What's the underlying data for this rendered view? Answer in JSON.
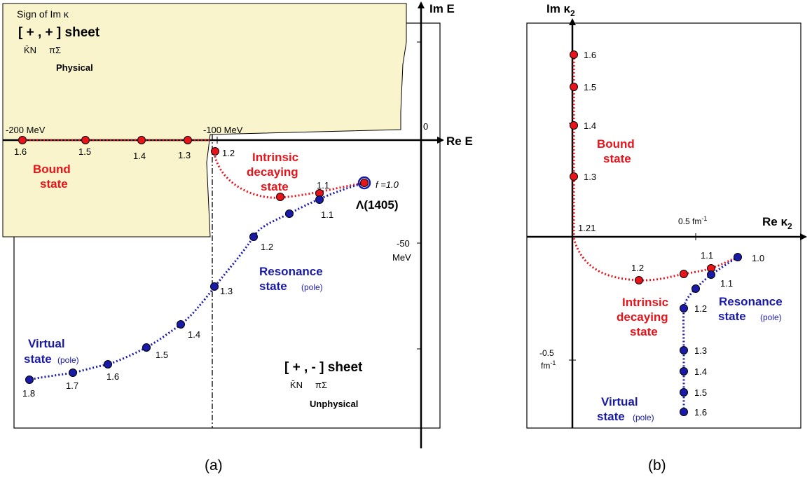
{
  "panel_a": {
    "caption": "(a)",
    "y_axis_label": "Im E",
    "x_axis_label": "Re E",
    "tick_minus200": "-200 MeV",
    "tick_minus100": "-100 MeV",
    "tick_zero": "0",
    "tick_minus50_value": "-50",
    "tick_minus50_unit": "MeV",
    "sign_title": "Sign of Im κ",
    "physical_sheet": {
      "bracket": "[ + , + ] sheet",
      "sub_kn": "K̄N",
      "sub_pisigma": "πΣ",
      "name": "Physical"
    },
    "unphysical_sheet": {
      "bracket": "[ + , - ] sheet",
      "sub_kn": "K̄N",
      "sub_pisigma": "πΣ",
      "name": "Unphysical"
    },
    "bound_state_line1": "Bound",
    "bound_state_line2": "state",
    "intrinsic_line1": "Intrinsic",
    "intrinsic_line2": "decaying",
    "intrinsic_line3": "state",
    "resonance_line1": "Resonance",
    "resonance_line2": "state",
    "resonance_pole": "(pole)",
    "virtual_line1": "Virtual",
    "virtual_line2": "state",
    "virtual_pole": "(pole)",
    "lambda_label": "Λ(1405)",
    "f_label": "f =1.0",
    "bound_points": [
      {
        "label": "1.6"
      },
      {
        "label": "1.5"
      },
      {
        "label": "1.4"
      },
      {
        "label": "1.3"
      }
    ],
    "red_curve_points": [
      {
        "label": "1.2"
      },
      {
        "label": ""
      },
      {
        "label": "1.1"
      },
      {
        "label": ""
      }
    ],
    "blue_curve_points": [
      {
        "label": ""
      },
      {
        "label": "1.1"
      },
      {
        "label": ""
      },
      {
        "label": "1.2"
      },
      {
        "label": "1.3"
      },
      {
        "label": "1.4"
      },
      {
        "label": "1.5"
      },
      {
        "label": "1.6"
      },
      {
        "label": "1.7"
      },
      {
        "label": "1.8"
      }
    ]
  },
  "panel_b": {
    "caption": "(b)",
    "y_axis_label": "Im κ",
    "y_axis_sub": "2",
    "x_axis_label": "Re κ",
    "x_axis_sub": "2",
    "tick_x_value": "0.5 fm",
    "tick_x_exp": "-1",
    "tick_y_value": "-0.5",
    "tick_y_unit": "fm",
    "tick_y_exp": "-1",
    "origin_label": "1.21",
    "bound_line1": "Bound",
    "bound_line2": "state",
    "intrinsic_line1": "Intrinsic",
    "intrinsic_line2": "decaying",
    "intrinsic_line3": "state",
    "resonance_line1": "Resonance",
    "resonance_line2": "state",
    "resonance_pole": "(pole)",
    "virtual_line1": "Virtual",
    "virtual_line2": "state",
    "virtual_pole": "(pole)",
    "bound_points": [
      {
        "label": "1.6"
      },
      {
        "label": "1.5"
      },
      {
        "label": "1.4"
      },
      {
        "label": "1.3"
      }
    ],
    "red_curve_points": [
      {
        "label": "1.2"
      },
      {
        "label": ""
      },
      {
        "label": "1.1"
      },
      {
        "label": "1.0"
      }
    ],
    "blue_curve_points": [
      {
        "label": "1.1"
      },
      {
        "label": ""
      },
      {
        "label": "1.2"
      },
      {
        "label": "1.3"
      },
      {
        "label": "1.4"
      },
      {
        "label": "1.5"
      },
      {
        "label": "1.6"
      }
    ]
  },
  "colors": {
    "red": "#e8141b",
    "blue": "#1a1aa8",
    "physical_fill": "#faf4cc"
  }
}
